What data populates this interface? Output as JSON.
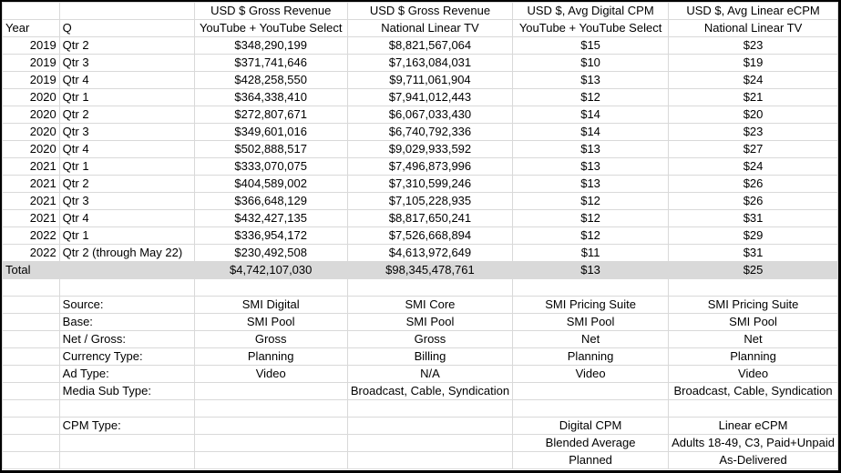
{
  "header1": [
    "",
    "",
    "USD $ Gross Revenue",
    "USD $ Gross Revenue",
    "USD $, Avg Digital CPM",
    "USD $, Avg Linear eCPM"
  ],
  "header2": [
    "Year",
    "Q",
    "YouTube  + YouTube Select",
    "National Linear TV",
    "YouTube  + YouTube Select",
    "National Linear TV"
  ],
  "rows": [
    [
      "2019",
      "Qtr 2",
      "$348,290,199",
      "$8,821,567,064",
      "$15",
      "$23"
    ],
    [
      "2019",
      "Qtr 3",
      "$371,741,646",
      "$7,163,084,031",
      "$10",
      "$19"
    ],
    [
      "2019",
      "Qtr 4",
      "$428,258,550",
      "$9,711,061,904",
      "$13",
      "$24"
    ],
    [
      "2020",
      "Qtr 1",
      "$364,338,410",
      "$7,941,012,443",
      "$12",
      "$21"
    ],
    [
      "2020",
      "Qtr 2",
      "$272,807,671",
      "$6,067,033,430",
      "$14",
      "$20"
    ],
    [
      "2020",
      "Qtr 3",
      "$349,601,016",
      "$6,740,792,336",
      "$14",
      "$23"
    ],
    [
      "2020",
      "Qtr 4",
      "$502,888,517",
      "$9,029,933,592",
      "$13",
      "$27"
    ],
    [
      "2021",
      "Qtr 1",
      "$333,070,075",
      "$7,496,873,996",
      "$13",
      "$24"
    ],
    [
      "2021",
      "Qtr 2",
      "$404,589,002",
      "$7,310,599,246",
      "$13",
      "$26"
    ],
    [
      "2021",
      "Qtr 3",
      "$366,648,129",
      "$7,105,228,935",
      "$12",
      "$26"
    ],
    [
      "2021",
      "Qtr 4",
      "$432,427,135",
      "$8,817,650,241",
      "$12",
      "$31"
    ],
    [
      "2022",
      "Qtr 1",
      "$336,954,172",
      "$7,526,668,894",
      "$12",
      "$29"
    ],
    [
      "2022",
      "Qtr 2 (through May 22)",
      "$230,492,508",
      "$4,613,972,649",
      "$11",
      "$31"
    ]
  ],
  "total": [
    "Total",
    "",
    "$4,742,107,030",
    "$98,345,478,761",
    "$13",
    "$25"
  ],
  "meta": [
    [
      "Source:",
      "SMI Digital",
      "SMI Core",
      "SMI Pricing Suite",
      "SMI Pricing Suite"
    ],
    [
      "Base:",
      "SMI Pool",
      "SMI Pool",
      "SMI Pool",
      "SMI Pool"
    ],
    [
      "Net / Gross:",
      "Gross",
      "Gross",
      "Net",
      "Net"
    ],
    [
      "Currency Type:",
      "Planning",
      "Billing",
      "Planning",
      "Planning"
    ],
    [
      "Ad Type:",
      "Video",
      "N/A",
      "Video",
      "Video"
    ],
    [
      "Media Sub Type:",
      "",
      "Broadcast, Cable, Syndication",
      "",
      "Broadcast, Cable, Syndication"
    ],
    [
      "",
      "",
      "",
      "",
      ""
    ],
    [
      "CPM Type:",
      "",
      "",
      "Digital CPM",
      "Linear eCPM"
    ],
    [
      "",
      "",
      "",
      "Blended Average",
      "Adults 18-49, C3, Paid+Unpaid"
    ],
    [
      "",
      "",
      "",
      "Planned",
      "As-Delivered"
    ]
  ]
}
